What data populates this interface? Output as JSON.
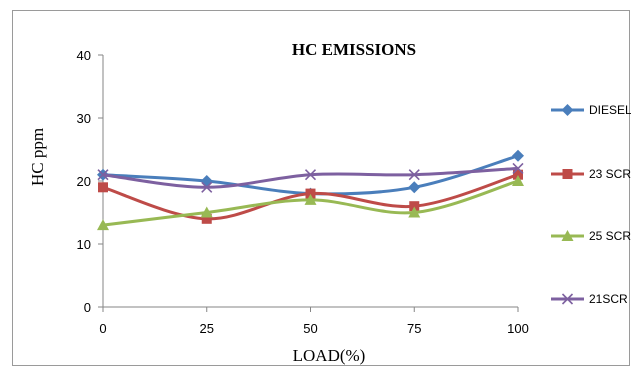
{
  "chart_data": {
    "type": "line",
    "title": "HC EMISSIONS",
    "xlabel": "LOAD(%)",
    "ylabel": "HC  ppm",
    "categories": [
      "0",
      "25",
      "50",
      "75",
      "100"
    ],
    "ylim": [
      0,
      40
    ],
    "yticks": [
      "0",
      "10",
      "20",
      "30",
      "40"
    ],
    "grid": false,
    "legend_position": "right",
    "series": [
      {
        "name": "DIESEL",
        "values": [
          21,
          20,
          18,
          19,
          24
        ],
        "color": "#4a7ebb",
        "marker": "diamond"
      },
      {
        "name": "23 SCR",
        "values": [
          19,
          14,
          18,
          16,
          21
        ],
        "color": "#be4b48",
        "marker": "square"
      },
      {
        "name": "25 SCR",
        "values": [
          13,
          15,
          17,
          15,
          20
        ],
        "color": "#98b954",
        "marker": "triangle"
      },
      {
        "name": "21SCR",
        "values": [
          21,
          19,
          21,
          21,
          22
        ],
        "color": "#7d60a0",
        "marker": "x"
      }
    ]
  }
}
